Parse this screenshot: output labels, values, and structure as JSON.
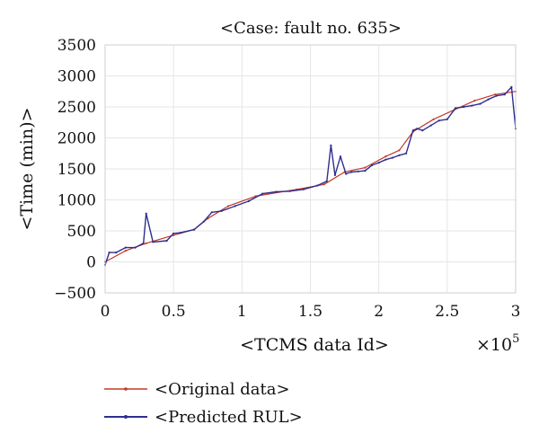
{
  "chart_data": {
    "type": "line",
    "title": "<Case: fault no. 635>",
    "xlabel": "<TCMS data Id>",
    "ylabel": "<Time (min)>",
    "x_multiplier_label": "×10",
    "x_multiplier_exponent": "5",
    "xlim": [
      0,
      300000
    ],
    "ylim": [
      -500,
      3500
    ],
    "xticks": [
      0,
      50000,
      100000,
      150000,
      200000,
      250000,
      300000
    ],
    "xtick_labels": [
      "0",
      "0.5",
      "1",
      "1.5",
      "2",
      "2.5",
      "3"
    ],
    "yticks": [
      -500,
      0,
      500,
      1000,
      1500,
      2000,
      2500,
      3000,
      3500
    ],
    "ytick_labels": [
      "−500",
      "0",
      "500",
      "1000",
      "1500",
      "2000",
      "2500",
      "3000",
      "3500"
    ],
    "grid": true,
    "legend_position": "below",
    "series": [
      {
        "name": "<Original data>",
        "color": "#c0392b",
        "x": [
          0,
          15000,
          30000,
          50000,
          65000,
          75000,
          90000,
          110000,
          140000,
          160000,
          175000,
          190000,
          205000,
          215000,
          225000,
          240000,
          255000,
          270000,
          285000,
          300000
        ],
        "y": [
          0,
          180,
          300,
          430,
          520,
          700,
          900,
          1060,
          1170,
          1250,
          1450,
          1520,
          1700,
          1800,
          2100,
          2300,
          2450,
          2600,
          2700,
          2750
        ]
      },
      {
        "name": "<Predicted RUL>",
        "color": "#2e2e8f",
        "x": [
          0,
          3000,
          8000,
          15000,
          22000,
          28000,
          30000,
          35000,
          45000,
          50000,
          55000,
          65000,
          72000,
          78000,
          85000,
          95000,
          105000,
          115000,
          125000,
          135000,
          145000,
          155000,
          162000,
          165000,
          168000,
          172000,
          176000,
          180000,
          185000,
          190000,
          195000,
          200000,
          205000,
          210000,
          215000,
          220000,
          225000,
          228000,
          232000,
          238000,
          244000,
          250000,
          256000,
          262000,
          268000,
          274000,
          280000,
          286000,
          292000,
          297000,
          300000
        ],
        "y": [
          -50,
          150,
          150,
          230,
          230,
          300,
          780,
          320,
          340,
          460,
          470,
          520,
          650,
          800,
          820,
          900,
          980,
          1100,
          1130,
          1140,
          1170,
          1230,
          1300,
          1880,
          1400,
          1700,
          1420,
          1450,
          1460,
          1470,
          1560,
          1600,
          1650,
          1680,
          1720,
          1750,
          2120,
          2150,
          2120,
          2200,
          2280,
          2300,
          2480,
          2500,
          2520,
          2550,
          2620,
          2680,
          2700,
          2820,
          2150
        ]
      }
    ]
  }
}
